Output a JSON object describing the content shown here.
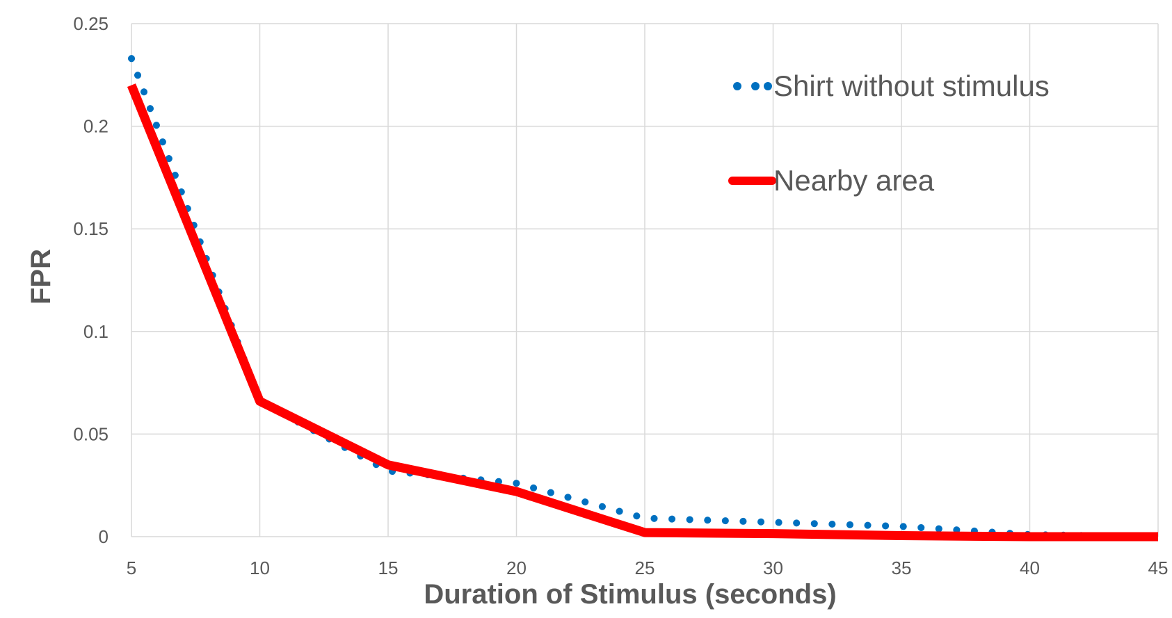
{
  "chart_data": {
    "type": "line",
    "title": "",
    "xlabel": "Duration of Stimulus (seconds)",
    "ylabel": "FPR",
    "xlim": [
      5,
      45
    ],
    "ylim": [
      0,
      0.25
    ],
    "x_ticks": [
      "5",
      "10",
      "15",
      "20",
      "25",
      "30",
      "35",
      "40",
      "45"
    ],
    "y_ticks": [
      "0",
      "0.05",
      "0.1",
      "0.15",
      "0.2",
      "0.25"
    ],
    "x": [
      5,
      10,
      15,
      20,
      25,
      30,
      35,
      40,
      45
    ],
    "grid": true,
    "legend_position": "top-right",
    "series": [
      {
        "name": "Shirt without stimulus",
        "values": [
          0.233,
          0.066,
          0.032,
          0.026,
          0.009,
          0.007,
          0.005,
          0.001,
          0.0
        ],
        "color": "#0070C0",
        "style": "dotted"
      },
      {
        "name": "Nearby area",
        "values": [
          0.22,
          0.066,
          0.035,
          0.022,
          0.002,
          0.0015,
          0.0005,
          0.0,
          0.0
        ],
        "color": "#FF0000",
        "style": "solid"
      }
    ]
  }
}
